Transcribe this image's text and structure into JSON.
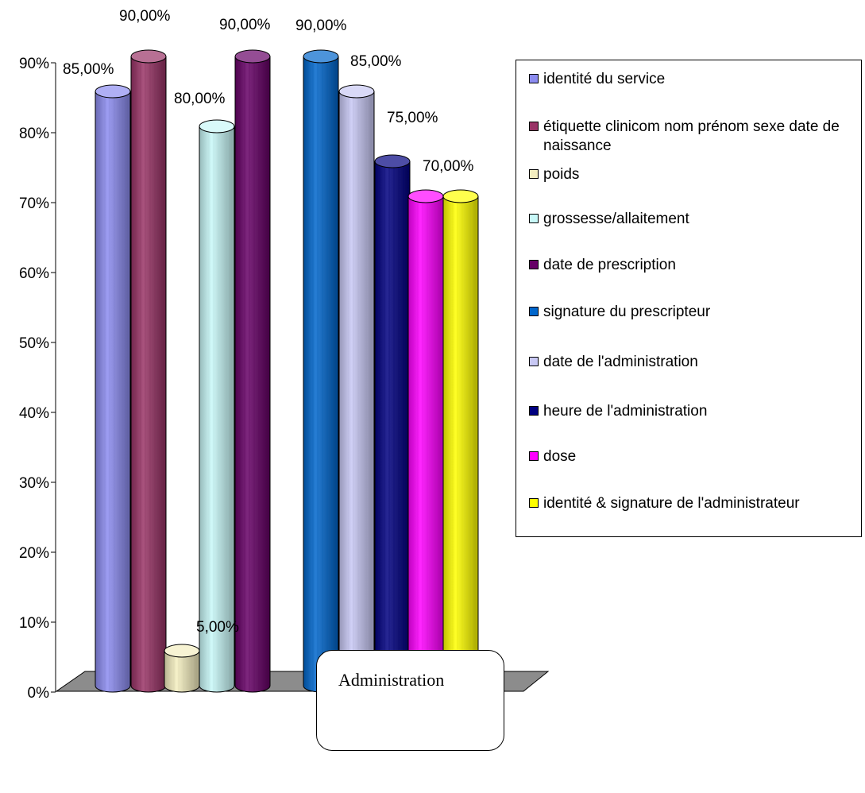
{
  "chart_data": {
    "type": "bar",
    "category": "Administration",
    "ylim": [
      0,
      90
    ],
    "yticks": [
      "0%",
      "10%",
      "20%",
      "30%",
      "40%",
      "50%",
      "60%",
      "70%",
      "80%",
      "90%"
    ],
    "grid": false,
    "legend_position": "right",
    "series": [
      {
        "name": "identité du service",
        "value": 85,
        "label": "85,00%",
        "color": "#8C8CF0"
      },
      {
        "name": "étiquette clinicom nom prénom sexe date de naissance",
        "value": 90,
        "label": "90,00%",
        "color": "#993366"
      },
      {
        "name": "poids",
        "value": 5,
        "label": "5,00%",
        "color": "#F4EEC0"
      },
      {
        "name": "grossesse/allaitement",
        "value": 80,
        "label": "80,00%",
        "color": "#C8F8F8"
      },
      {
        "name": "date de prescription",
        "value": 90,
        "label": "90,00%",
        "color": "#660066"
      },
      {
        "name": "signature du prescripteur",
        "value": 90,
        "label": "90,00%",
        "color": "#0066CC"
      },
      {
        "name": "date de l'administration",
        "value": 85,
        "label": "85,00%",
        "color": "#C8C8F4"
      },
      {
        "name": "heure de l'administration",
        "value": 75,
        "label": "75,00%",
        "color": "#000080"
      },
      {
        "name": "dose",
        "value": 70,
        "label": "70,00%",
        "color": "#FF00FF"
      },
      {
        "name": "identité & signature de l'administrateur",
        "value": 70,
        "label": "",
        "color": "#FFFF00"
      }
    ]
  }
}
